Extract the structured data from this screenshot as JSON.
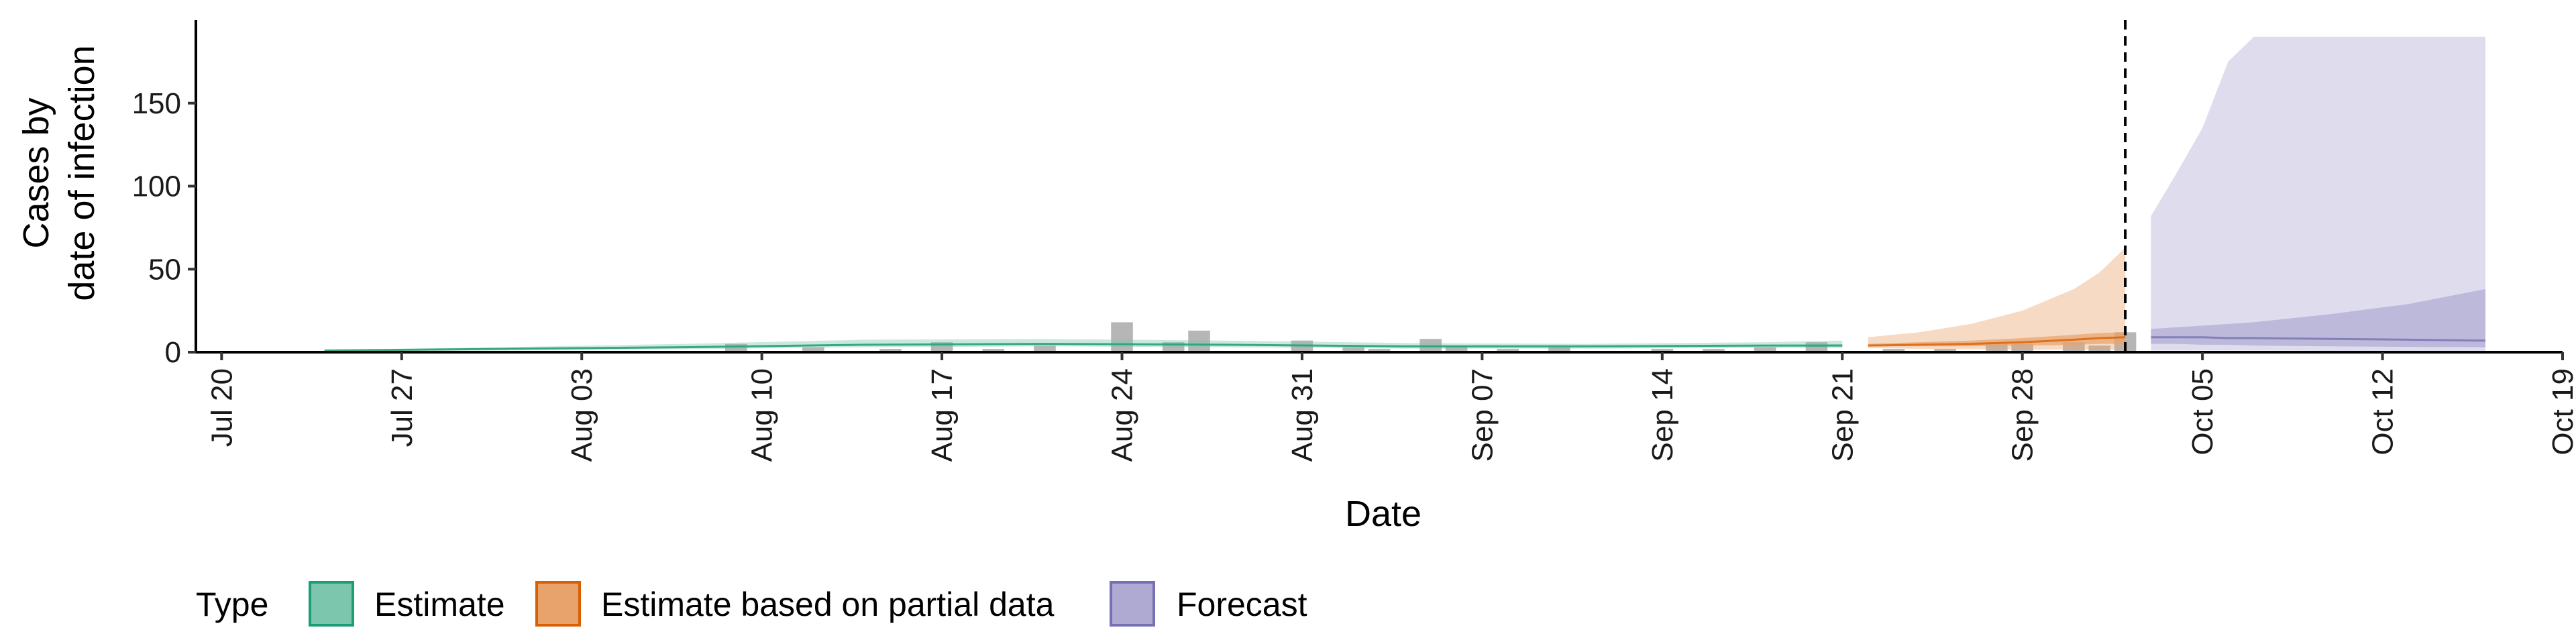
{
  "chart_data": {
    "type": "area",
    "xlabel": "Date",
    "ylabel": [
      "Cases by",
      "date of infection"
    ],
    "x_range": [
      "2020-07-19",
      "2020-10-19"
    ],
    "ylim": [
      0,
      200
    ],
    "y_ticks": [
      0,
      50,
      100,
      150
    ],
    "x_tick_labels": [
      {
        "date": "2020-07-20",
        "label": "Jul 20"
      },
      {
        "date": "2020-07-27",
        "label": "Jul 27"
      },
      {
        "date": "2020-08-03",
        "label": "Aug 03"
      },
      {
        "date": "2020-08-10",
        "label": "Aug 10"
      },
      {
        "date": "2020-08-17",
        "label": "Aug 17"
      },
      {
        "date": "2020-08-24",
        "label": "Aug 24"
      },
      {
        "date": "2020-08-31",
        "label": "Aug 31"
      },
      {
        "date": "2020-09-07",
        "label": "Sep 07"
      },
      {
        "date": "2020-09-14",
        "label": "Sep 14"
      },
      {
        "date": "2020-09-21",
        "label": "Sep 21"
      },
      {
        "date": "2020-09-28",
        "label": "Sep 28"
      },
      {
        "date": "2020-10-05",
        "label": "Oct 05"
      },
      {
        "date": "2020-10-12",
        "label": "Oct 12"
      },
      {
        "date": "2020-10-19",
        "label": "Oct 19"
      }
    ],
    "grid": false,
    "legend": {
      "title": "Type",
      "position": "bottom-left",
      "entries": [
        {
          "label": "Estimate",
          "fill": "#7cc6ad",
          "stroke": "#1b9e77"
        },
        {
          "label": "Estimate based on partial data",
          "fill": "#e8a36c",
          "stroke": "#d95f02"
        },
        {
          "label": "Forecast",
          "fill": "#aeaad2",
          "stroke": "#7570b3"
        }
      ]
    },
    "forecast_date": "2020-10-02",
    "observed_cases": {
      "color": "#9e9e9e",
      "dates": [
        "2020-08-09",
        "2020-08-12",
        "2020-08-15",
        "2020-08-17",
        "2020-08-19",
        "2020-08-21",
        "2020-08-24",
        "2020-08-26",
        "2020-08-27",
        "2020-08-31",
        "2020-09-02",
        "2020-09-03",
        "2020-09-05",
        "2020-09-06",
        "2020-09-08",
        "2020-09-10",
        "2020-09-14",
        "2020-09-16",
        "2020-09-18",
        "2020-09-20",
        "2020-09-23",
        "2020-09-25",
        "2020-09-27",
        "2020-09-28",
        "2020-09-30",
        "2020-10-01",
        "2020-10-02"
      ],
      "values": [
        5,
        3,
        2,
        6,
        2,
        4,
        18,
        6,
        13,
        7,
        3,
        2,
        8,
        4,
        2,
        3,
        2,
        2,
        3,
        6,
        2,
        2,
        5,
        5,
        6,
        4,
        12
      ]
    },
    "series": [
      {
        "name": "Estimate",
        "dates": [
          "2020-07-24",
          "2020-07-31",
          "2020-08-07",
          "2020-08-14",
          "2020-08-21",
          "2020-08-28",
          "2020-09-04",
          "2020-09-11",
          "2020-09-18",
          "2020-09-21"
        ],
        "median": [
          1,
          2,
          3,
          4.5,
          5,
          4.5,
          3.5,
          3.5,
          4,
          4
        ],
        "lower50": [
          0.8,
          1.5,
          2.5,
          4,
          4.5,
          4,
          3,
          3,
          3.5,
          3.5
        ],
        "upper50": [
          1.2,
          2.5,
          3.5,
          5,
          5.5,
          5,
          4,
          4,
          4.5,
          4.8
        ],
        "lower90": [
          0.5,
          1,
          1.8,
          3,
          3.5,
          3,
          2.2,
          2.2,
          2.5,
          2.5
        ],
        "upper90": [
          1.5,
          3,
          5,
          7.5,
          8,
          7,
          5.5,
          5,
          6,
          7
        ]
      },
      {
        "name": "Estimate based on partial data",
        "dates": [
          "2020-09-22",
          "2020-09-24",
          "2020-09-26",
          "2020-09-28",
          "2020-09-30",
          "2020-10-01",
          "2020-10-02"
        ],
        "median": [
          4,
          4.5,
          5,
          6,
          7.5,
          8.5,
          9
        ],
        "lower50": [
          3.5,
          3.5,
          3.5,
          4,
          4.5,
          5,
          5
        ],
        "upper50": [
          5,
          6,
          7,
          8.5,
          10.5,
          11.5,
          12
        ],
        "lower90": [
          2.5,
          2,
          1.8,
          1.5,
          1.5,
          1.5,
          1.5
        ],
        "upper90": [
          9,
          12,
          17,
          25,
          38,
          48,
          63
        ]
      },
      {
        "name": "Forecast",
        "dates": [
          "2020-10-03",
          "2020-10-04",
          "2020-10-05",
          "2020-10-06",
          "2020-10-07",
          "2020-10-10",
          "2020-10-13",
          "2020-10-16"
        ],
        "median": [
          9,
          9,
          9,
          8.5,
          8.5,
          8,
          7.5,
          7
        ],
        "lower50": [
          5,
          5,
          4.5,
          4.5,
          4,
          3.5,
          3.2,
          3
        ],
        "upper50": [
          14,
          15,
          16,
          17,
          18,
          23,
          29,
          38
        ],
        "lower90": [
          1,
          1,
          1,
          1,
          1,
          0.8,
          0.6,
          0.5
        ],
        "upper90": [
          82,
          108,
          135,
          175,
          190,
          190,
          190,
          190
        ]
      }
    ]
  }
}
